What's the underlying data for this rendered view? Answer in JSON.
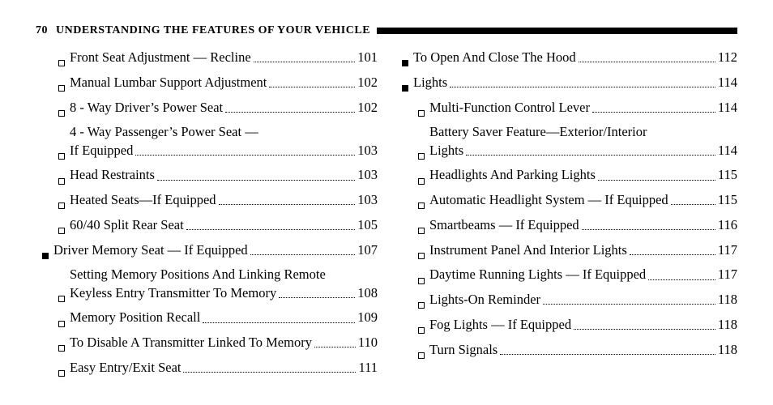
{
  "header": {
    "page_number": "70",
    "title": "UNDERSTANDING THE FEATURES OF YOUR VEHICLE"
  },
  "left_column": [
    {
      "level": 1,
      "bullet": "hollow",
      "label": "Front Seat Adjustment — Recline",
      "page": "101"
    },
    {
      "level": 1,
      "bullet": "hollow",
      "label": "Manual Lumbar Support Adjustment",
      "page": "102"
    },
    {
      "level": 1,
      "bullet": "hollow",
      "label": "8 - Way Driver’s Power Seat",
      "page": "102"
    },
    {
      "level": 1,
      "bullet": "hollow",
      "label_line1": "4 - Way Passenger’s Power Seat —",
      "label_line2": "If Equipped",
      "page": "103",
      "wrap": true
    },
    {
      "level": 1,
      "bullet": "hollow",
      "label": "Head Restraints",
      "page": "103"
    },
    {
      "level": 1,
      "bullet": "hollow",
      "label": "Heated Seats—If Equipped",
      "page": "103"
    },
    {
      "level": 1,
      "bullet": "hollow",
      "label": "60/40 Split Rear Seat",
      "page": "105"
    },
    {
      "level": 0,
      "bullet": "solid",
      "label": "Driver Memory Seat — If Equipped",
      "page": "107"
    },
    {
      "level": 1,
      "bullet": "hollow",
      "label_line1": "Setting Memory Positions And Linking Remote",
      "label_line2": "Keyless Entry Transmitter To Memory",
      "page": "108",
      "wrap": true
    },
    {
      "level": 1,
      "bullet": "hollow",
      "label": "Memory Position Recall",
      "page": "109"
    },
    {
      "level": 1,
      "bullet": "hollow",
      "label": "To Disable A Transmitter Linked To Memory",
      "page": "110"
    },
    {
      "level": 1,
      "bullet": "hollow",
      "label": "Easy Entry/Exit Seat",
      "page": "111"
    }
  ],
  "right_column": [
    {
      "level": 0,
      "bullet": "solid",
      "label": "To Open And Close The Hood",
      "page": "112"
    },
    {
      "level": 0,
      "bullet": "solid",
      "label": "Lights",
      "page": "114"
    },
    {
      "level": 1,
      "bullet": "hollow",
      "label": "Multi-Function Control Lever",
      "page": "114"
    },
    {
      "level": 1,
      "bullet": "hollow",
      "label_line1": "Battery Saver Feature—Exterior/Interior",
      "label_line2": "Lights",
      "page": "114",
      "wrap": true
    },
    {
      "level": 1,
      "bullet": "hollow",
      "label": "Headlights And Parking Lights",
      "page": "115"
    },
    {
      "level": 1,
      "bullet": "hollow",
      "label": "Automatic Headlight System — If Equipped",
      "page": "115"
    },
    {
      "level": 1,
      "bullet": "hollow",
      "label": "Smartbeams — If Equipped",
      "page": "116"
    },
    {
      "level": 1,
      "bullet": "hollow",
      "label": "Instrument Panel And Interior Lights",
      "page": "117"
    },
    {
      "level": 1,
      "bullet": "hollow",
      "label": "Daytime Running Lights — If Equipped",
      "page": "117"
    },
    {
      "level": 1,
      "bullet": "hollow",
      "label": "Lights-On Reminder",
      "page": "118"
    },
    {
      "level": 1,
      "bullet": "hollow",
      "label": "Fog Lights — If Equipped",
      "page": "118"
    },
    {
      "level": 1,
      "bullet": "hollow",
      "label": "Turn Signals",
      "page": "118"
    }
  ]
}
